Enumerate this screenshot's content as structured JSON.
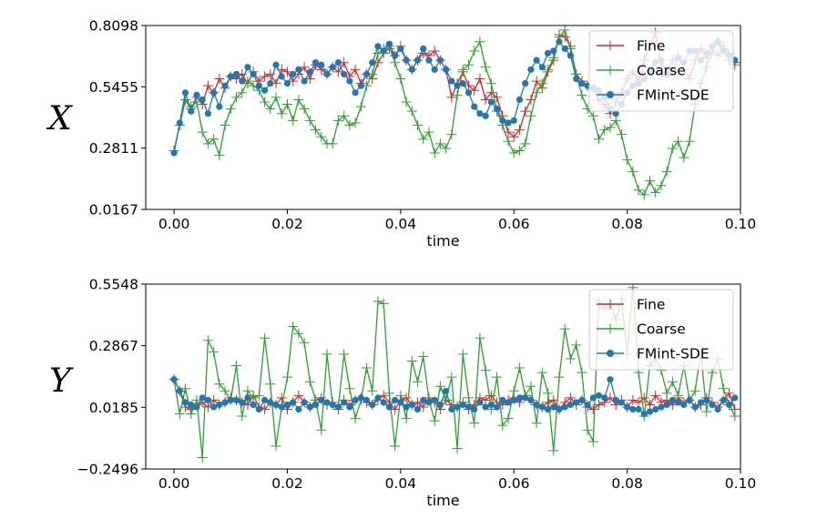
{
  "chart_data": [
    {
      "type": "line",
      "title": "",
      "xlabel": "time",
      "ylabel": "X",
      "xlim": [
        -0.005,
        0.1
      ],
      "ylim": [
        0.0167,
        0.8098
      ],
      "xticks": [
        0.0,
        0.02,
        0.04,
        0.06,
        0.08,
        0.1
      ],
      "xtick_labels": [
        "0.00",
        "0.02",
        "0.04",
        "0.06",
        "0.08",
        "0.10"
      ],
      "yticks": [
        0.0167,
        0.2811,
        0.5455,
        0.8098
      ],
      "ytick_labels": [
        "0.0167",
        "0.2811",
        "0.5455",
        "0.8098"
      ],
      "legend_position": "top-right",
      "x": [
        0.0,
        0.001,
        0.002,
        0.003,
        0.004,
        0.005,
        0.006,
        0.007,
        0.008,
        0.009,
        0.01,
        0.011,
        0.012,
        0.013,
        0.014,
        0.015,
        0.016,
        0.017,
        0.018,
        0.019,
        0.02,
        0.021,
        0.022,
        0.023,
        0.024,
        0.025,
        0.026,
        0.027,
        0.028,
        0.029,
        0.03,
        0.031,
        0.032,
        0.033,
        0.034,
        0.035,
        0.036,
        0.037,
        0.038,
        0.039,
        0.04,
        0.041,
        0.042,
        0.043,
        0.044,
        0.045,
        0.046,
        0.047,
        0.048,
        0.049,
        0.05,
        0.051,
        0.052,
        0.053,
        0.054,
        0.055,
        0.056,
        0.057,
        0.058,
        0.059,
        0.06,
        0.061,
        0.062,
        0.063,
        0.064,
        0.065,
        0.066,
        0.067,
        0.068,
        0.069,
        0.07,
        0.071,
        0.072,
        0.073,
        0.074,
        0.075,
        0.076,
        0.077,
        0.078,
        0.079,
        0.08,
        0.081,
        0.082,
        0.083,
        0.084,
        0.085,
        0.086,
        0.087,
        0.088,
        0.089,
        0.09,
        0.091,
        0.092,
        0.093,
        0.094,
        0.095,
        0.096,
        0.097,
        0.098,
        0.099
      ],
      "series": [
        {
          "name": "Fine",
          "color": "#d62728",
          "marker": "plus",
          "values": [
            0.27,
            0.38,
            0.49,
            0.45,
            0.5,
            0.47,
            0.55,
            0.52,
            0.58,
            0.54,
            0.59,
            0.58,
            0.6,
            0.56,
            0.61,
            0.57,
            0.59,
            0.6,
            0.56,
            0.62,
            0.61,
            0.57,
            0.6,
            0.63,
            0.58,
            0.64,
            0.62,
            0.6,
            0.63,
            0.61,
            0.65,
            0.59,
            0.62,
            0.56,
            0.6,
            0.58,
            0.65,
            0.69,
            0.71,
            0.68,
            0.72,
            0.66,
            0.62,
            0.66,
            0.69,
            0.68,
            0.7,
            0.66,
            0.62,
            0.5,
            0.56,
            0.61,
            0.55,
            0.53,
            0.58,
            0.49,
            0.52,
            0.5,
            0.42,
            0.35,
            0.33,
            0.36,
            0.44,
            0.49,
            0.57,
            0.54,
            0.61,
            0.66,
            0.77,
            0.76,
            0.72,
            0.6,
            0.57,
            0.55,
            0.54,
            0.49,
            0.47,
            0.43,
            0.48,
            0.52,
            0.58,
            0.61,
            0.57,
            0.66,
            0.72,
            0.78,
            0.63,
            0.59,
            0.66,
            0.68,
            0.62,
            0.58,
            0.66,
            0.71,
            0.67,
            0.7,
            0.68,
            0.71,
            0.66,
            0.65
          ]
        },
        {
          "name": "Coarse",
          "color": "#2ca02c",
          "marker": "plus",
          "values": [
            0.27,
            0.38,
            0.49,
            0.46,
            0.48,
            0.35,
            0.3,
            0.32,
            0.25,
            0.38,
            0.45,
            0.5,
            0.52,
            0.57,
            0.55,
            0.53,
            0.48,
            0.45,
            0.5,
            0.43,
            0.47,
            0.4,
            0.49,
            0.45,
            0.4,
            0.36,
            0.33,
            0.3,
            0.3,
            0.4,
            0.42,
            0.38,
            0.39,
            0.46,
            0.55,
            0.6,
            0.69,
            0.71,
            0.72,
            0.65,
            0.58,
            0.48,
            0.44,
            0.38,
            0.32,
            0.35,
            0.26,
            0.3,
            0.28,
            0.34,
            0.51,
            0.62,
            0.64,
            0.7,
            0.74,
            0.63,
            0.56,
            0.44,
            0.38,
            0.31,
            0.26,
            0.27,
            0.3,
            0.42,
            0.52,
            0.56,
            0.62,
            0.67,
            0.76,
            0.79,
            0.71,
            0.6,
            0.51,
            0.45,
            0.42,
            0.32,
            0.36,
            0.37,
            0.4,
            0.34,
            0.23,
            0.18,
            0.1,
            0.08,
            0.14,
            0.09,
            0.12,
            0.18,
            0.28,
            0.31,
            0.24,
            0.31,
            0.47,
            0.56,
            0.63,
            0.7,
            0.74,
            0.72,
            0.69,
            0.64
          ]
        },
        {
          "name": "FMint-SDE",
          "color": "#1f77b4",
          "marker": "circle",
          "values": [
            0.26,
            0.39,
            0.52,
            0.44,
            0.51,
            0.49,
            0.43,
            0.52,
            0.46,
            0.55,
            0.59,
            0.6,
            0.57,
            0.63,
            0.6,
            0.55,
            0.53,
            0.56,
            0.64,
            0.59,
            0.56,
            0.6,
            0.62,
            0.57,
            0.61,
            0.65,
            0.64,
            0.6,
            0.63,
            0.65,
            0.6,
            0.57,
            0.52,
            0.55,
            0.6,
            0.65,
            0.72,
            0.7,
            0.73,
            0.68,
            0.71,
            0.66,
            0.62,
            0.66,
            0.71,
            0.66,
            0.62,
            0.66,
            0.62,
            0.57,
            0.55,
            0.56,
            0.52,
            0.46,
            0.43,
            0.42,
            0.48,
            0.45,
            0.4,
            0.39,
            0.4,
            0.49,
            0.56,
            0.62,
            0.66,
            0.63,
            0.69,
            0.7,
            0.74,
            0.71,
            0.68,
            0.58,
            0.56,
            0.55,
            0.54,
            0.53,
            0.5,
            0.45,
            0.43,
            0.47,
            0.52,
            0.55,
            0.56,
            0.58,
            0.61,
            0.65,
            0.66,
            0.6,
            0.62,
            0.67,
            0.65,
            0.7,
            0.7,
            0.66,
            0.69,
            0.72,
            0.74,
            0.7,
            0.68,
            0.66
          ]
        }
      ]
    },
    {
      "type": "line",
      "title": "",
      "xlabel": "time",
      "ylabel": "Y",
      "xlim": [
        -0.005,
        0.1
      ],
      "ylim": [
        -0.2496,
        0.5548
      ],
      "xticks": [
        0.0,
        0.02,
        0.04,
        0.06,
        0.08,
        0.1
      ],
      "xtick_labels": [
        "0.00",
        "0.02",
        "0.04",
        "0.06",
        "0.08",
        "0.10"
      ],
      "yticks": [
        -0.2496,
        0.0185,
        0.2867,
        0.5548
      ],
      "ytick_labels": [
        "−0.2496",
        "0.0185",
        "0.2867",
        "0.5548"
      ],
      "legend_position": "top-right",
      "x": [
        0.0,
        0.001,
        0.002,
        0.003,
        0.004,
        0.005,
        0.006,
        0.007,
        0.008,
        0.009,
        0.01,
        0.011,
        0.012,
        0.013,
        0.014,
        0.015,
        0.016,
        0.017,
        0.018,
        0.019,
        0.02,
        0.021,
        0.022,
        0.023,
        0.024,
        0.025,
        0.026,
        0.027,
        0.028,
        0.029,
        0.03,
        0.031,
        0.032,
        0.033,
        0.034,
        0.035,
        0.036,
        0.037,
        0.038,
        0.039,
        0.04,
        0.041,
        0.042,
        0.043,
        0.044,
        0.045,
        0.046,
        0.047,
        0.048,
        0.049,
        0.05,
        0.051,
        0.052,
        0.053,
        0.054,
        0.055,
        0.056,
        0.057,
        0.058,
        0.059,
        0.06,
        0.061,
        0.062,
        0.063,
        0.064,
        0.065,
        0.066,
        0.067,
        0.068,
        0.069,
        0.07,
        0.071,
        0.072,
        0.073,
        0.074,
        0.075,
        0.076,
        0.077,
        0.078,
        0.079,
        0.08,
        0.081,
        0.082,
        0.083,
        0.084,
        0.085,
        0.086,
        0.087,
        0.088,
        0.089,
        0.09,
        0.091,
        0.092,
        0.093,
        0.094,
        0.095,
        0.096,
        0.097,
        0.098,
        0.099
      ],
      "series": [
        {
          "name": "Fine",
          "color": "#d62728",
          "marker": "plus",
          "values": [
            0.14,
            0.09,
            0.02,
            0.01,
            0.03,
            0.04,
            0.02,
            0.05,
            0.03,
            0.04,
            0.06,
            0.05,
            0.04,
            0.03,
            0.07,
            0.02,
            0.01,
            0.04,
            0.03,
            0.06,
            0.01,
            0.04,
            0.07,
            0.04,
            0.02,
            0.05,
            0.06,
            0.03,
            0.04,
            0.01,
            0.05,
            0.03,
            0.05,
            0.06,
            0.04,
            0.03,
            0.05,
            0.07,
            0.04,
            0.01,
            0.05,
            0.06,
            0.03,
            0.04,
            0.02,
            0.06,
            0.04,
            0.01,
            0.05,
            0.03,
            0.02,
            0.04,
            0.01,
            0.03,
            0.06,
            0.05,
            0.07,
            0.04,
            0.03,
            0.05,
            0.06,
            0.04,
            0.07,
            0.05,
            0.03,
            0.02,
            0.04,
            0.05,
            0.01,
            0.04,
            0.06,
            0.03,
            0.05,
            0.02,
            0.01,
            0.03,
            0.04,
            0.06,
            0.03,
            0.05,
            0.02,
            0.05,
            0.04,
            0.06,
            0.03,
            0.07,
            0.04,
            0.05,
            0.03,
            0.06,
            0.04,
            0.05,
            0.02,
            0.03,
            0.06,
            0.04,
            0.02,
            0.05,
            0.08,
            0.01
          ]
        },
        {
          "name": "Coarse",
          "color": "#2ca02c",
          "marker": "plus",
          "values": [
            0.14,
            -0.01,
            0.1,
            -0.01,
            0.05,
            -0.2,
            0.31,
            0.26,
            0.12,
            0.09,
            0.05,
            0.2,
            -0.02,
            0.09,
            0.06,
            0.07,
            0.32,
            0.12,
            -0.15,
            0.02,
            0.15,
            0.37,
            0.34,
            0.3,
            0.13,
            0.05,
            -0.08,
            0.25,
            0.03,
            0.02,
            0.25,
            0.1,
            -0.03,
            0.05,
            0.19,
            0.09,
            0.48,
            0.47,
            0.08,
            -0.15,
            0.07,
            -0.03,
            0.22,
            0.13,
            0.24,
            0.05,
            -0.04,
            0.11,
            0.05,
            0.15,
            -0.16,
            0.25,
            0.06,
            -0.05,
            0.32,
            0.18,
            0.01,
            0.15,
            -0.06,
            -0.03,
            0.09,
            0.19,
            0.07,
            0.11,
            -0.05,
            0.17,
            0.08,
            -0.17,
            0.15,
            0.36,
            0.23,
            0.29,
            0.17,
            -0.08,
            -0.13,
            0.48,
            0.45,
            0.47,
            0.4,
            0.49,
            0.25,
            0.54,
            0.17,
            -0.02,
            0.2,
            0.23,
            0.18,
            0.08,
            0.13,
            0.07,
            0.2,
            0.05,
            0.09,
            0.26,
            0.0,
            0.17,
            0.23,
            0.1,
            0.03,
            -0.02
          ]
        },
        {
          "name": "FMint-SDE",
          "color": "#1f77b4",
          "marker": "circle",
          "values": [
            0.14,
            0.09,
            0.04,
            0.03,
            0.02,
            0.06,
            0.05,
            0.02,
            0.03,
            0.04,
            0.05,
            0.05,
            0.04,
            0.06,
            0.03,
            0.01,
            0.05,
            0.04,
            0.03,
            0.02,
            0.03,
            0.04,
            0.01,
            0.04,
            0.02,
            0.03,
            0.05,
            0.04,
            0.03,
            0.02,
            0.04,
            0.02,
            0.05,
            0.06,
            0.05,
            0.03,
            0.06,
            0.04,
            0.02,
            0.05,
            0.04,
            0.02,
            0.03,
            0.01,
            0.05,
            0.04,
            0.05,
            0.03,
            0.09,
            0.01,
            0.02,
            0.03,
            0.02,
            0.01,
            0.04,
            0.02,
            0.03,
            0.02,
            0.05,
            0.04,
            0.05,
            0.06,
            0.06,
            0.05,
            0.03,
            0.02,
            0.01,
            0.02,
            0.01,
            0.02,
            0.03,
            0.04,
            0.05,
            0.03,
            0.06,
            0.07,
            0.06,
            0.14,
            0.05,
            0.04,
            0.02,
            0.01,
            0.01,
            -0.01,
            0.0,
            0.01,
            0.02,
            0.03,
            0.05,
            0.04,
            0.03,
            0.05,
            0.02,
            0.04,
            0.05,
            0.03,
            0.01,
            0.05,
            0.03,
            0.06
          ]
        }
      ]
    }
  ]
}
